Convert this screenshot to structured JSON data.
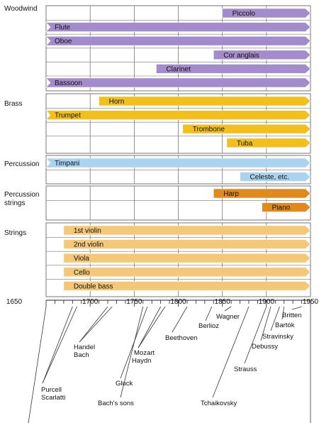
{
  "chart_data": {
    "type": "timeline",
    "xlim": [
      1650,
      1950
    ],
    "x_ticks": [
      "1650",
      "1700",
      "1750",
      "1800",
      "1850",
      "1900",
      "1950"
    ],
    "groups": [
      {
        "label": "Woodwind",
        "rows": [
          {
            "name": "Piccolo",
            "start": 1850,
            "end": 1950,
            "color": "#a38ccb"
          },
          {
            "name": "Flute",
            "start": 1650,
            "end": 1950,
            "color": "#a38ccb"
          },
          {
            "name": "Oboe",
            "start": 1650,
            "end": 1950,
            "color": "#a38ccb"
          },
          {
            "name": "Cor anglais",
            "start": 1840,
            "end": 1950,
            "color": "#a38ccb"
          },
          {
            "name": "Clarinet",
            "start": 1775,
            "end": 1950,
            "color": "#a38ccb"
          },
          {
            "name": "Bassoon",
            "start": 1650,
            "end": 1950,
            "color": "#a38ccb"
          }
        ]
      },
      {
        "label": "Brass",
        "rows": [
          {
            "name": "Horn",
            "start": 1710,
            "end": 1950,
            "color": "#f2c01d"
          },
          {
            "name": "Trumpet",
            "start": 1650,
            "end": 1950,
            "color": "#f2c01d"
          },
          {
            "name": "Trombone",
            "start": 1805,
            "end": 1950,
            "color": "#f2c01d"
          },
          {
            "name": "Tuba",
            "start": 1855,
            "end": 1950,
            "color": "#f2c01d"
          }
        ]
      },
      {
        "label": "Percussion",
        "rows": [
          {
            "name": "Timpani",
            "start": 1650,
            "end": 1950,
            "color": "#a9d3ee"
          },
          {
            "name": "Celeste, etc.",
            "start": 1870,
            "end": 1950,
            "color": "#a9d3ee"
          }
        ]
      },
      {
        "label": "Percussion strings",
        "rows": [
          {
            "name": "Harp",
            "start": 1840,
            "end": 1950,
            "color": "#e08a1e"
          },
          {
            "name": "Piano",
            "start": 1895,
            "end": 1950,
            "color": "#e08a1e"
          }
        ]
      },
      {
        "label": "Strings",
        "rows": [
          {
            "name": "1st violin",
            "start": 1670,
            "end": 1950,
            "color": "#f5c878"
          },
          {
            "name": "2nd violin",
            "start": 1670,
            "end": 1950,
            "color": "#f5c878"
          },
          {
            "name": "Viola",
            "start": 1670,
            "end": 1950,
            "color": "#f5c878"
          },
          {
            "name": "Cello",
            "start": 1670,
            "end": 1950,
            "color": "#f5c878"
          },
          {
            "name": "Double bass",
            "start": 1670,
            "end": 1950,
            "color": "#f5c878"
          }
        ]
      }
    ],
    "composers": [
      {
        "name": "Purcell",
        "year": 1680
      },
      {
        "name": "Scarlatti",
        "year": 1685
      },
      {
        "name": "Handel",
        "year": 1720
      },
      {
        "name": "Bach",
        "year": 1725
      },
      {
        "name": "Bach's sons",
        "year": 1760
      },
      {
        "name": "Gluck",
        "year": 1765
      },
      {
        "name": "Mozart",
        "year": 1785
      },
      {
        "name": "Haydn",
        "year": 1780
      },
      {
        "name": "Beethoven",
        "year": 1810
      },
      {
        "name": "Berlioz",
        "year": 1838
      },
      {
        "name": "Wagner",
        "year": 1860
      },
      {
        "name": "Tchaikovsky",
        "year": 1880
      },
      {
        "name": "Strauss",
        "year": 1900
      },
      {
        "name": "Debussy",
        "year": 1905
      },
      {
        "name": "Stravinsky",
        "year": 1915
      },
      {
        "name": "Bartók",
        "year": 1920
      },
      {
        "name": "Britten",
        "year": 1940
      }
    ]
  }
}
